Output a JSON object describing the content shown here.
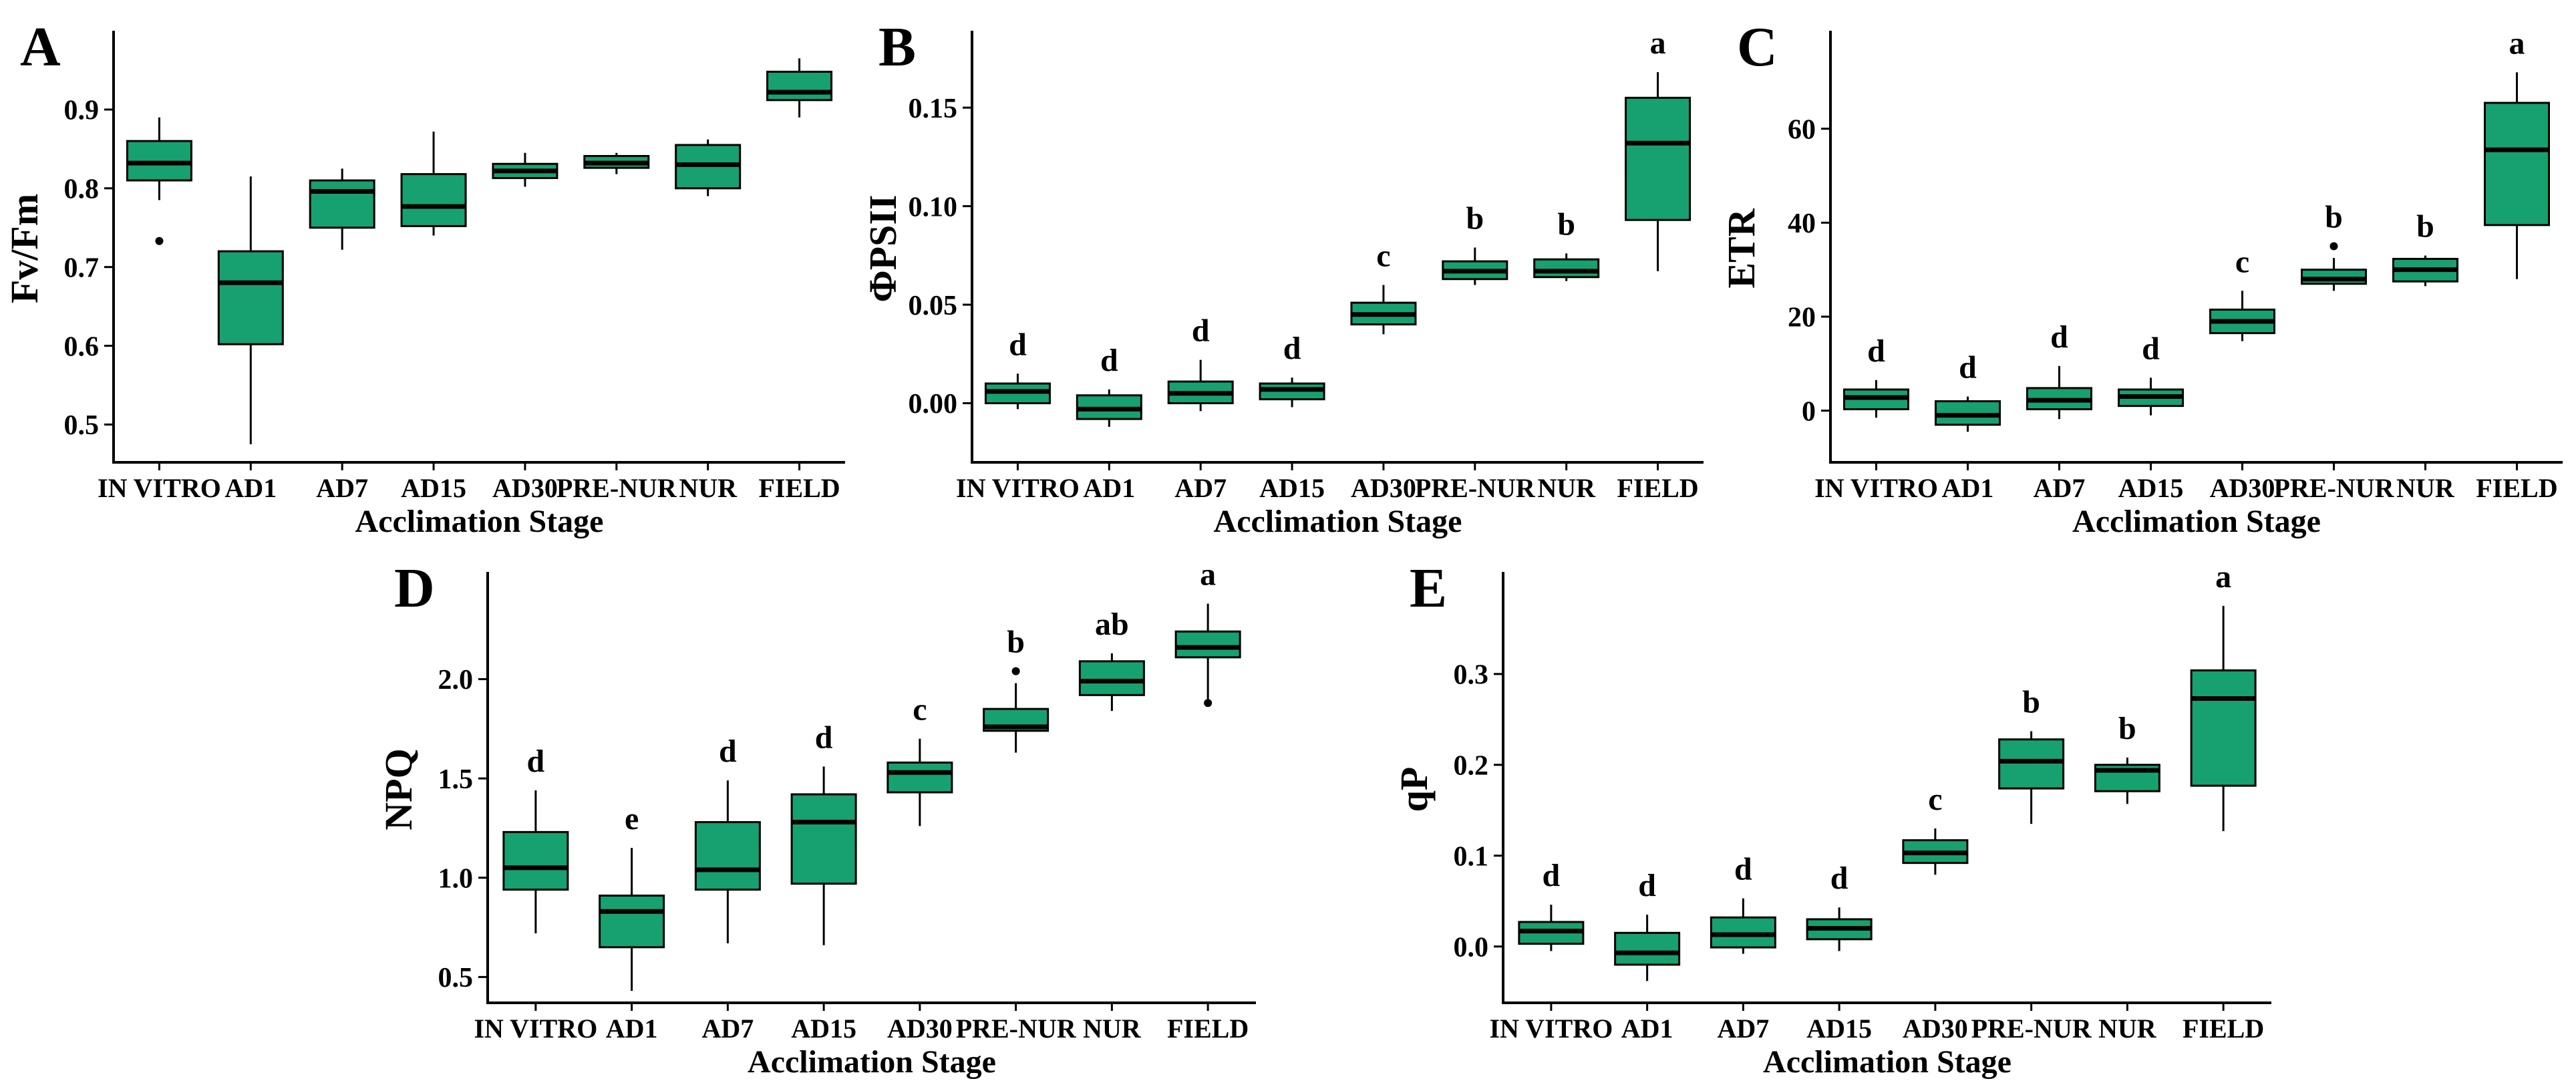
{
  "figure": {
    "background": "#ffffff",
    "box_fill": "#17A170",
    "box_stroke": "#000000",
    "axis_color": "#000000",
    "outlier_color": "#000000",
    "xlabel": "Acclimation Stage",
    "categories": [
      "IN VITRO",
      "AD1",
      "AD7",
      "AD15",
      "AD30",
      "PRE-NUR",
      "NUR",
      "FIELD"
    ]
  },
  "chart_data": [
    {
      "type": "boxplot",
      "panel_label": "A",
      "ylabel": "Fv/Fm",
      "xlabel": "Acclimation Stage",
      "ylim": [
        0.452,
        0.995
      ],
      "grid": false,
      "yticks": [
        {
          "v": 0.5,
          "label": "0.5"
        },
        {
          "v": 0.6,
          "label": "0.6"
        },
        {
          "v": 0.7,
          "label": "0.7"
        },
        {
          "v": 0.8,
          "label": "0.8"
        },
        {
          "v": 0.9,
          "label": "0.9"
        }
      ],
      "categories": [
        "IN VITRO",
        "AD1",
        "AD7",
        "AD15",
        "AD30",
        "PRE-NUR",
        "NUR",
        "FIELD"
      ],
      "boxes": [
        {
          "category": "IN VITRO",
          "whisker_low": 0.785,
          "q1": 0.81,
          "median": 0.832,
          "q3": 0.86,
          "whisker_high": 0.89,
          "outliers": [
            0.733
          ],
          "letter": ""
        },
        {
          "category": "AD1",
          "whisker_low": 0.475,
          "q1": 0.602,
          "median": 0.68,
          "q3": 0.72,
          "whisker_high": 0.815,
          "outliers": [],
          "letter": ""
        },
        {
          "category": "AD7",
          "whisker_low": 0.722,
          "q1": 0.75,
          "median": 0.796,
          "q3": 0.81,
          "whisker_high": 0.825,
          "outliers": [],
          "letter": ""
        },
        {
          "category": "AD15",
          "whisker_low": 0.74,
          "q1": 0.752,
          "median": 0.777,
          "q3": 0.818,
          "whisker_high": 0.872,
          "outliers": [],
          "letter": ""
        },
        {
          "category": "AD30",
          "whisker_low": 0.802,
          "q1": 0.813,
          "median": 0.822,
          "q3": 0.831,
          "whisker_high": 0.845,
          "outliers": [],
          "letter": ""
        },
        {
          "category": "PRE-NUR",
          "whisker_low": 0.818,
          "q1": 0.826,
          "median": 0.832,
          "q3": 0.841,
          "whisker_high": 0.845,
          "outliers": [],
          "letter": ""
        },
        {
          "category": "NUR",
          "whisker_low": 0.79,
          "q1": 0.8,
          "median": 0.83,
          "q3": 0.855,
          "whisker_high": 0.862,
          "outliers": [],
          "letter": ""
        },
        {
          "category": "FIELD",
          "whisker_low": 0.89,
          "q1": 0.912,
          "median": 0.922,
          "q3": 0.948,
          "whisker_high": 0.965,
          "outliers": [],
          "letter": ""
        }
      ]
    },
    {
      "type": "boxplot",
      "panel_label": "B",
      "ylabel": "ΦPSII",
      "xlabel": "Acclimation Stage",
      "ylim": [
        -0.03,
        0.187
      ],
      "grid": false,
      "yticks": [
        {
          "v": 0.0,
          "label": "0.00"
        },
        {
          "v": 0.05,
          "label": "0.05"
        },
        {
          "v": 0.1,
          "label": "0.10"
        },
        {
          "v": 0.15,
          "label": "0.15"
        }
      ],
      "categories": [
        "IN VITRO",
        "AD1",
        "AD7",
        "AD15",
        "AD30",
        "PRE-NUR",
        "NUR",
        "FIELD"
      ],
      "boxes": [
        {
          "category": "IN VITRO",
          "whisker_low": -0.003,
          "q1": 0.0,
          "median": 0.006,
          "q3": 0.01,
          "whisker_high": 0.015,
          "outliers": [],
          "letter": "d"
        },
        {
          "category": "AD1",
          "whisker_low": -0.012,
          "q1": -0.008,
          "median": -0.003,
          "q3": 0.004,
          "whisker_high": 0.007,
          "outliers": [],
          "letter": "d"
        },
        {
          "category": "AD7",
          "whisker_low": -0.004,
          "q1": 0.0,
          "median": 0.005,
          "q3": 0.011,
          "whisker_high": 0.022,
          "outliers": [],
          "letter": "d"
        },
        {
          "category": "AD15",
          "whisker_low": -0.002,
          "q1": 0.002,
          "median": 0.007,
          "q3": 0.01,
          "whisker_high": 0.013,
          "outliers": [],
          "letter": "d"
        },
        {
          "category": "AD30",
          "whisker_low": 0.035,
          "q1": 0.04,
          "median": 0.045,
          "q3": 0.051,
          "whisker_high": 0.06,
          "outliers": [],
          "letter": "c"
        },
        {
          "category": "PRE-NUR",
          "whisker_low": 0.06,
          "q1": 0.063,
          "median": 0.067,
          "q3": 0.072,
          "whisker_high": 0.079,
          "outliers": [],
          "letter": "b"
        },
        {
          "category": "NUR",
          "whisker_low": 0.062,
          "q1": 0.064,
          "median": 0.067,
          "q3": 0.073,
          "whisker_high": 0.076,
          "outliers": [],
          "letter": "b"
        },
        {
          "category": "FIELD",
          "whisker_low": 0.067,
          "q1": 0.093,
          "median": 0.132,
          "q3": 0.155,
          "whisker_high": 0.168,
          "outliers": [],
          "letter": "a"
        }
      ]
    },
    {
      "type": "boxplot",
      "panel_label": "C",
      "ylabel": "ETR",
      "xlabel": "Acclimation Stage",
      "ylim": [
        -11,
        80
      ],
      "grid": false,
      "yticks": [
        {
          "v": 0,
          "label": "0"
        },
        {
          "v": 20,
          "label": "20"
        },
        {
          "v": 40,
          "label": "40"
        },
        {
          "v": 60,
          "label": "60"
        }
      ],
      "categories": [
        "IN VITRO",
        "AD1",
        "AD7",
        "AD15",
        "AD30",
        "PRE-NUR",
        "NUR",
        "FIELD"
      ],
      "boxes": [
        {
          "category": "IN VITRO",
          "whisker_low": -1.5,
          "q1": 0.3,
          "median": 2.8,
          "q3": 4.5,
          "whisker_high": 6.5,
          "outliers": [],
          "letter": "d"
        },
        {
          "category": "AD1",
          "whisker_low": -4.5,
          "q1": -3.0,
          "median": -1.0,
          "q3": 2.0,
          "whisker_high": 3.0,
          "outliers": [],
          "letter": "d"
        },
        {
          "category": "AD7",
          "whisker_low": -1.8,
          "q1": 0.3,
          "median": 2.2,
          "q3": 4.8,
          "whisker_high": 9.5,
          "outliers": [],
          "letter": "d"
        },
        {
          "category": "AD15",
          "whisker_low": -1.0,
          "q1": 1.0,
          "median": 3.0,
          "q3": 4.5,
          "whisker_high": 7.0,
          "outliers": [],
          "letter": "d"
        },
        {
          "category": "AD30",
          "whisker_low": 14.8,
          "q1": 16.5,
          "median": 19.0,
          "q3": 21.5,
          "whisker_high": 25.5,
          "outliers": [],
          "letter": "c"
        },
        {
          "category": "PRE-NUR",
          "whisker_low": 25.5,
          "q1": 27.0,
          "median": 28.0,
          "q3": 30.0,
          "whisker_high": 32.5,
          "outliers": [
            35.0
          ],
          "letter": "b"
        },
        {
          "category": "NUR",
          "whisker_low": 26.5,
          "q1": 27.5,
          "median": 30.0,
          "q3": 32.3,
          "whisker_high": 33.0,
          "outliers": [],
          "letter": "b"
        },
        {
          "category": "FIELD",
          "whisker_low": 28.0,
          "q1": 39.5,
          "median": 55.5,
          "q3": 65.5,
          "whisker_high": 72.0,
          "outliers": [],
          "letter": "a"
        }
      ]
    },
    {
      "type": "boxplot",
      "panel_label": "D",
      "ylabel": "NPQ",
      "xlabel": "Acclimation Stage",
      "ylim": [
        0.37,
        2.52
      ],
      "grid": false,
      "yticks": [
        {
          "v": 0.5,
          "label": "0.5"
        },
        {
          "v": 1.0,
          "label": "1.0"
        },
        {
          "v": 1.5,
          "label": "1.5"
        },
        {
          "v": 2.0,
          "label": "2.0"
        }
      ],
      "categories": [
        "IN VITRO",
        "AD1",
        "AD7",
        "AD15",
        "AD30",
        "PRE-NUR",
        "NUR",
        "FIELD"
      ],
      "boxes": [
        {
          "category": "IN VITRO",
          "whisker_low": 0.72,
          "q1": 0.94,
          "median": 1.05,
          "q3": 1.23,
          "whisker_high": 1.44,
          "outliers": [],
          "letter": "d"
        },
        {
          "category": "AD1",
          "whisker_low": 0.43,
          "q1": 0.65,
          "median": 0.83,
          "q3": 0.91,
          "whisker_high": 1.15,
          "outliers": [],
          "letter": "e"
        },
        {
          "category": "AD7",
          "whisker_low": 0.67,
          "q1": 0.94,
          "median": 1.04,
          "q3": 1.28,
          "whisker_high": 1.49,
          "outliers": [],
          "letter": "d"
        },
        {
          "category": "AD15",
          "whisker_low": 0.66,
          "q1": 0.97,
          "median": 1.28,
          "q3": 1.42,
          "whisker_high": 1.56,
          "outliers": [],
          "letter": "d"
        },
        {
          "category": "AD30",
          "whisker_low": 1.26,
          "q1": 1.43,
          "median": 1.53,
          "q3": 1.58,
          "whisker_high": 1.7,
          "outliers": [],
          "letter": "c"
        },
        {
          "category": "PRE-NUR",
          "whisker_low": 1.63,
          "q1": 1.74,
          "median": 1.76,
          "q3": 1.85,
          "whisker_high": 1.98,
          "outliers": [
            2.04
          ],
          "letter": "b"
        },
        {
          "category": "NUR",
          "whisker_low": 1.84,
          "q1": 1.92,
          "median": 1.99,
          "q3": 2.09,
          "whisker_high": 2.13,
          "outliers": [],
          "letter": "ab"
        },
        {
          "category": "FIELD",
          "whisker_low": 1.9,
          "q1": 2.11,
          "median": 2.16,
          "q3": 2.24,
          "whisker_high": 2.38,
          "outliers": [
            1.88
          ],
          "letter": "a"
        }
      ]
    },
    {
      "type": "boxplot",
      "panel_label": "E",
      "ylabel": "qP",
      "xlabel": "Acclimation Stage",
      "ylim": [
        -0.062,
        0.408
      ],
      "grid": false,
      "yticks": [
        {
          "v": 0.0,
          "label": "0.0"
        },
        {
          "v": 0.1,
          "label": "0.1"
        },
        {
          "v": 0.2,
          "label": "0.2"
        },
        {
          "v": 0.3,
          "label": "0.3"
        }
      ],
      "categories": [
        "IN VITRO",
        "AD1",
        "AD7",
        "AD15",
        "AD30",
        "PRE-NUR",
        "NUR",
        "FIELD"
      ],
      "boxes": [
        {
          "category": "IN VITRO",
          "whisker_low": -0.005,
          "q1": 0.003,
          "median": 0.017,
          "q3": 0.027,
          "whisker_high": 0.046,
          "outliers": [],
          "letter": "d"
        },
        {
          "category": "AD1",
          "whisker_low": -0.038,
          "q1": -0.02,
          "median": -0.007,
          "q3": 0.015,
          "whisker_high": 0.035,
          "outliers": [],
          "letter": "d"
        },
        {
          "category": "AD7",
          "whisker_low": -0.008,
          "q1": -0.001,
          "median": 0.013,
          "q3": 0.032,
          "whisker_high": 0.053,
          "outliers": [],
          "letter": "d"
        },
        {
          "category": "AD15",
          "whisker_low": -0.005,
          "q1": 0.008,
          "median": 0.02,
          "q3": 0.03,
          "whisker_high": 0.043,
          "outliers": [],
          "letter": "d"
        },
        {
          "category": "AD30",
          "whisker_low": 0.079,
          "q1": 0.092,
          "median": 0.103,
          "q3": 0.117,
          "whisker_high": 0.13,
          "outliers": [],
          "letter": "c"
        },
        {
          "category": "PRE-NUR",
          "whisker_low": 0.135,
          "q1": 0.174,
          "median": 0.204,
          "q3": 0.228,
          "whisker_high": 0.237,
          "outliers": [],
          "letter": "b"
        },
        {
          "category": "NUR",
          "whisker_low": 0.157,
          "q1": 0.171,
          "median": 0.194,
          "q3": 0.2,
          "whisker_high": 0.208,
          "outliers": [],
          "letter": "b"
        },
        {
          "category": "FIELD",
          "whisker_low": 0.127,
          "q1": 0.177,
          "median": 0.273,
          "q3": 0.304,
          "whisker_high": 0.375,
          "outliers": [],
          "letter": "a"
        }
      ]
    }
  ]
}
